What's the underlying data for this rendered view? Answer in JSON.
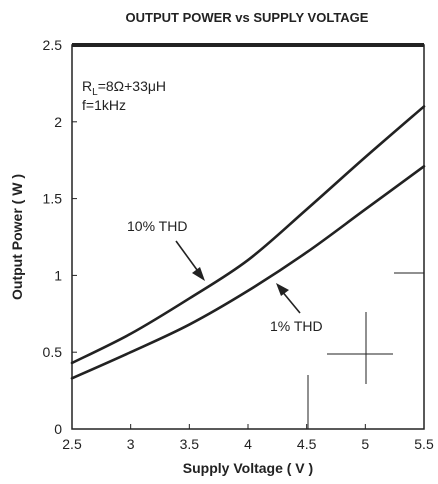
{
  "chart_data": {
    "type": "line",
    "title": "OUTPUT POWER vs SUPPLY VOLTAGE",
    "xlabel": "Supply Voltage ( V )",
    "ylabel": "Output Power ( W )",
    "xlim": [
      2.5,
      5.5
    ],
    "ylim": [
      0,
      2.5
    ],
    "xticks": [
      "2.5",
      "3",
      "3.5",
      "4",
      "4.5",
      "5",
      "5.5"
    ],
    "yticks": [
      "0",
      "0.5",
      "1",
      "1.5",
      "2",
      "2.5"
    ],
    "grid": false,
    "legend": "none",
    "annotations": {
      "load_prefix": "R",
      "load_sub": "L",
      "load_rest": "=8Ω+33μH",
      "freq": "f=1kHz"
    },
    "series": [
      {
        "name": "10% THD",
        "x": [
          2.5,
          3.0,
          3.5,
          4.0,
          4.5,
          5.0,
          5.5
        ],
        "y": [
          0.43,
          0.62,
          0.85,
          1.1,
          1.43,
          1.77,
          2.1
        ]
      },
      {
        "name": "1% THD",
        "x": [
          2.5,
          3.0,
          3.5,
          4.0,
          4.5,
          5.0,
          5.5
        ],
        "y": [
          0.33,
          0.5,
          0.68,
          0.9,
          1.15,
          1.43,
          1.71
        ]
      }
    ]
  }
}
